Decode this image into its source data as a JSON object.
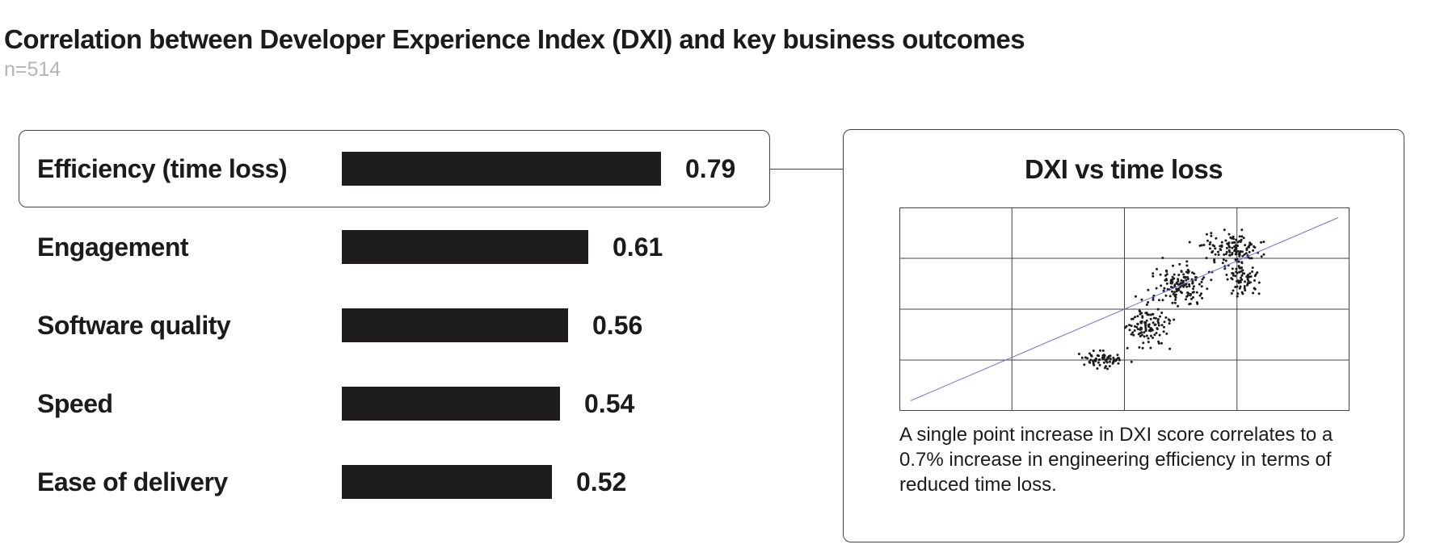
{
  "header": {
    "title": "Correlation between Developer Experience Index (DXI) and key business outcomes",
    "subtitle": "n=514"
  },
  "rows": [
    {
      "label": "Efficiency (time loss)",
      "value": "0.79"
    },
    {
      "label": "Engagement",
      "value": "0.61"
    },
    {
      "label": "Software quality",
      "value": "0.56"
    },
    {
      "label": "Speed",
      "value": "0.54"
    },
    {
      "label": "Ease of delivery",
      "value": "0.52"
    }
  ],
  "panel": {
    "title": "DXI vs time loss",
    "caption": "A single point increase in DXI score correlates to a 0.7% increase in engineering efficiency in terms of reduced time loss."
  },
  "colors": {
    "bar": "#1f1c1d",
    "trendline": "#6f6fd6",
    "points": "#1c1a1b"
  },
  "chart_data": [
    {
      "type": "bar",
      "orientation": "horizontal",
      "categories": [
        "Efficiency (time loss)",
        "Engagement",
        "Software quality",
        "Speed",
        "Ease of delivery"
      ],
      "values": [
        0.79,
        0.61,
        0.56,
        0.54,
        0.52
      ],
      "highlighted_category": "Efficiency (time loss)"
    },
    {
      "type": "scatter",
      "title": "DXI vs time loss",
      "grid": true,
      "xlim": [
        0,
        4
      ],
      "ylim": [
        0,
        4
      ],
      "trendline": {
        "x": [
          0.1,
          3.9
        ],
        "y": [
          0.2,
          3.8
        ]
      },
      "points_note": "514 respondents; clustered roughly x 1.4–3.3, y 0.9–3.5",
      "clusters": [
        {
          "x": 1.8,
          "y": 1.0,
          "sx": 0.14,
          "sy": 0.1,
          "n": 70
        },
        {
          "x": 2.2,
          "y": 1.7,
          "sx": 0.14,
          "sy": 0.28,
          "n": 110
        },
        {
          "x": 2.5,
          "y": 2.5,
          "sx": 0.18,
          "sy": 0.28,
          "n": 140
        },
        {
          "x": 2.95,
          "y": 3.2,
          "sx": 0.22,
          "sy": 0.2,
          "n": 120
        },
        {
          "x": 3.05,
          "y": 2.6,
          "sx": 0.1,
          "sy": 0.22,
          "n": 74
        }
      ]
    }
  ]
}
